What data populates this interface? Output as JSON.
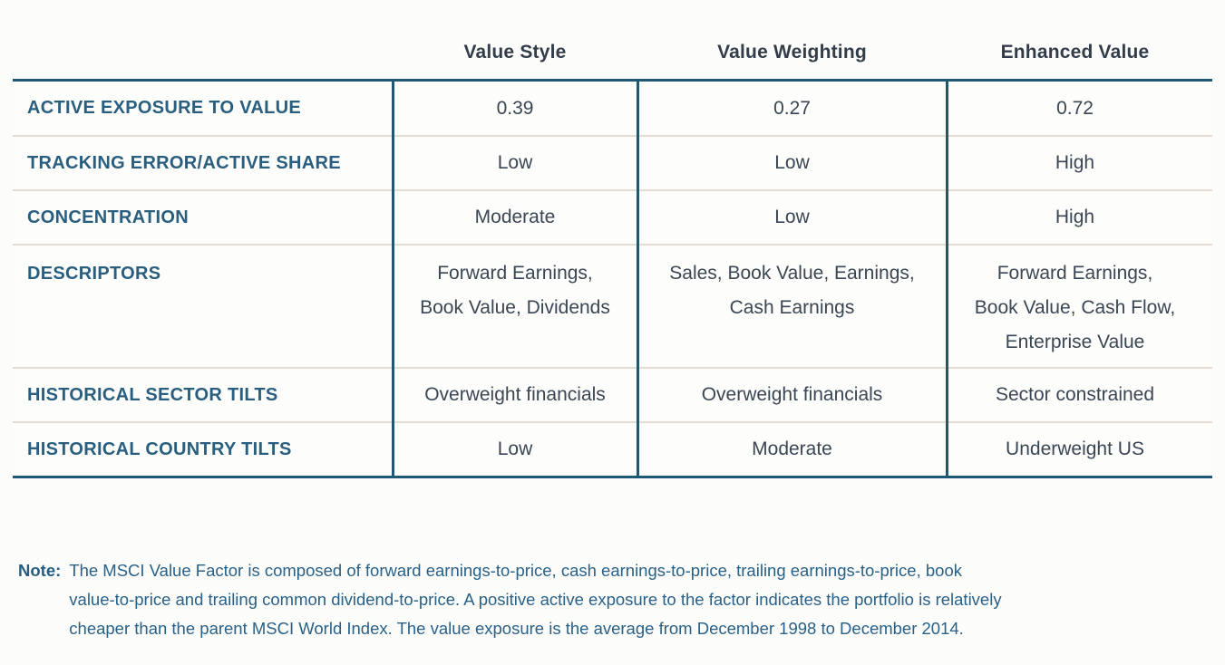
{
  "table": {
    "columns": [
      {
        "label": "Value Style"
      },
      {
        "label": "Value Weighting"
      },
      {
        "label": "Enhanced Value"
      }
    ],
    "rows": [
      {
        "label": "ACTIVE EXPOSURE TO VALUE",
        "values": [
          "0.39",
          "0.27",
          "0.72"
        ]
      },
      {
        "label": "TRACKING ERROR/ACTIVE SHARE",
        "values": [
          "Low",
          "Low",
          "High"
        ]
      },
      {
        "label": "CONCENTRATION",
        "values": [
          "Moderate",
          "Low",
          "High"
        ]
      },
      {
        "label": "DESCRIPTORS",
        "values": [
          [
            "Forward Earnings,",
            "Book Value, Dividends"
          ],
          [
            "Sales, Book Value, Earnings,",
            "Cash Earnings"
          ],
          [
            "Forward Earnings,",
            "Book Value, Cash Flow,",
            "Enterprise Value"
          ]
        ]
      },
      {
        "label": "HISTORICAL SECTOR TILTS",
        "values": [
          "Overweight financials",
          "Overweight financials",
          "Sector constrained"
        ]
      },
      {
        "label": "HISTORICAL COUNTRY TILTS",
        "values": [
          "Low",
          "Moderate",
          "Underweight US"
        ]
      }
    ]
  },
  "note": {
    "label": "Note:",
    "lines": [
      "The MSCI Value Factor is composed of forward earnings-to-price, cash earnings-to-price, trailing earnings-to-price, book",
      "value-to-price and trailing common dividend-to-price. A positive active exposure to the factor indicates the portfolio is relatively",
      "cheaper than the parent MSCI World Index. The value exposure is the average from December 1998 to December 2014."
    ]
  },
  "colors": {
    "accent_line": "#1f5876",
    "row_separator": "#e3ded3",
    "row_label_text": "#2a5e7e",
    "header_text": "#323d49",
    "cell_text": "#3b4653",
    "note_text": "#2a6187",
    "background": "#fcfcfb"
  }
}
